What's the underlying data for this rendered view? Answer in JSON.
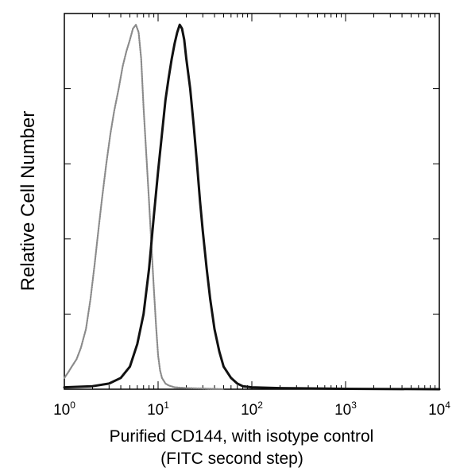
{
  "chart_data": {
    "type": "line",
    "title": "",
    "xlabel": "Purified CD144, with isotype control",
    "xlabel_line2": "(FITC second step)",
    "ylabel": "Relative Cell Number",
    "x_scale": "log",
    "xlim": [
      1,
      10000
    ],
    "ylim": [
      0,
      100
    ],
    "x_ticks": [
      {
        "value": 1,
        "base": "10",
        "exp": "0"
      },
      {
        "value": 10,
        "base": "10",
        "exp": "1"
      },
      {
        "value": 100,
        "base": "10",
        "exp": "2"
      },
      {
        "value": 1000,
        "base": "10",
        "exp": "3"
      },
      {
        "value": 10000,
        "base": "10",
        "exp": "4"
      }
    ],
    "grid": false,
    "legend": "none",
    "series": [
      {
        "color": "#8a8a8a",
        "style": "dotted",
        "x": [
          1.0,
          1.1,
          1.2,
          1.35,
          1.5,
          1.7,
          1.9,
          2.1,
          2.3,
          2.5,
          2.8,
          3.1,
          3.4,
          3.8,
          4.2,
          4.6,
          5.0,
          5.4,
          5.8,
          6.2,
          6.6,
          7.0,
          7.5,
          8.0,
          8.5,
          9.0,
          9.5,
          10.0,
          10.5,
          11.0,
          12.0,
          13.0,
          15.0,
          20.0,
          30.0,
          50.0
        ],
        "y": [
          3,
          4.5,
          6,
          8,
          11,
          16,
          24,
          33,
          42,
          50,
          60,
          68,
          74,
          80,
          86,
          90,
          93,
          96,
          97,
          95,
          88,
          75,
          62,
          50,
          38,
          27,
          17,
          9,
          5,
          3,
          1.5,
          1,
          0.5,
          0.3,
          0.2,
          0
        ]
      },
      {
        "color": "#111111",
        "style": "solid",
        "x": [
          1.0,
          2.0,
          3.0,
          4.0,
          5.0,
          6.0,
          7.0,
          8.0,
          9.0,
          10.0,
          11.0,
          12.0,
          13.0,
          14.0,
          15.0,
          16.0,
          17.0,
          18.0,
          19.0,
          20.0,
          22.0,
          24.0,
          26.0,
          28.0,
          30.0,
          33.0,
          36.0,
          40.0,
          45.0,
          50.0,
          60.0,
          70.0,
          80.0,
          100.0,
          200.0,
          1000.0,
          10000.0
        ],
        "y": [
          0.5,
          0.8,
          1.5,
          3,
          6,
          12,
          20,
          32,
          46,
          58,
          68,
          77,
          83,
          88,
          92,
          95,
          97,
          96,
          93,
          88,
          80,
          70,
          60,
          50,
          42,
          32,
          24,
          16,
          10,
          6,
          3,
          1.5,
          0.8,
          0.5,
          0.3,
          0.1,
          0
        ]
      }
    ]
  }
}
